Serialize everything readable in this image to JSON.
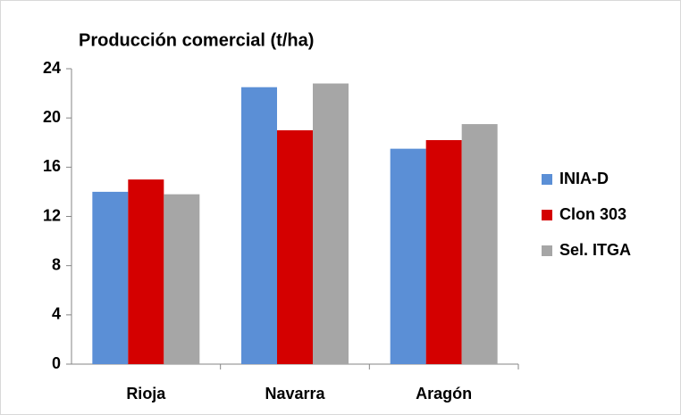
{
  "chart_data": {
    "type": "bar",
    "title": "Producción comercial (t/ha)",
    "categories": [
      "Rioja",
      "Navarra",
      "Aragón"
    ],
    "series": [
      {
        "name": "INIA-D",
        "color": "#5b8fd6",
        "values": [
          14,
          22.5,
          17.5
        ]
      },
      {
        "name": "Clon 303",
        "color": "#d40000",
        "values": [
          15,
          19,
          18.2
        ]
      },
      {
        "name": "Sel. ITGA",
        "color": "#a6a6a6",
        "values": [
          13.8,
          22.8,
          19.5
        ]
      }
    ],
    "ylim": [
      0,
      24
    ],
    "yticks": [
      0,
      4,
      8,
      12,
      16,
      20,
      24
    ],
    "grid": false,
    "legend": "right"
  }
}
